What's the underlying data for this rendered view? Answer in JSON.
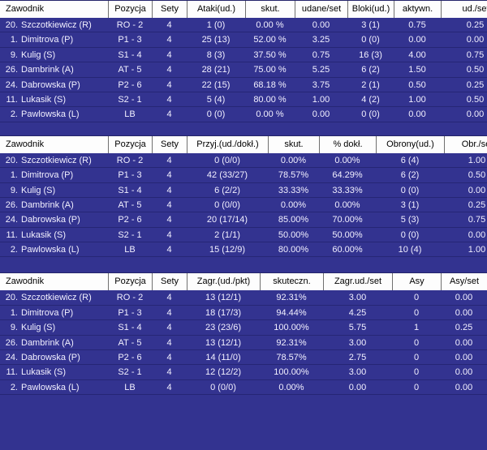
{
  "colors": {
    "background": "#333390",
    "header_bg": "#fdfdfd",
    "header_text": "#000000",
    "body_text": "#f2f0ff",
    "header_separator": "#707070"
  },
  "tables": [
    {
      "name": "attack-block-stats",
      "headers": [
        "Zawodnik",
        "Pozycja",
        "Sety",
        "Ataki(ud.)",
        "skut.",
        "udane/set",
        "Bloki(ud.)",
        "aktywn.",
        "ud./set"
      ],
      "rows": [
        {
          "num": "20.",
          "name": "Szczotkiewicz (R)",
          "values": [
            "RO - 2",
            "4",
            "1 (0)",
            "0.00 %",
            "0.00",
            "3 (1)",
            "0.75",
            "0.25"
          ]
        },
        {
          "num": "1.",
          "name": "Dimitrova (P)",
          "values": [
            "P1 - 3",
            "4",
            "25 (13)",
            "52.00 %",
            "3.25",
            "0 (0)",
            "0.00",
            "0.00"
          ]
        },
        {
          "num": "9.",
          "name": "Kulig (S)",
          "values": [
            "S1 - 4",
            "4",
            "8 (3)",
            "37.50 %",
            "0.75",
            "16 (3)",
            "4.00",
            "0.75"
          ]
        },
        {
          "num": "26.",
          "name": "Dambrink (A)",
          "values": [
            "AT - 5",
            "4",
            "28 (21)",
            "75.00 %",
            "5.25",
            "6 (2)",
            "1.50",
            "0.50"
          ]
        },
        {
          "num": "24.",
          "name": "Dabrowska (P)",
          "values": [
            "P2 - 6",
            "4",
            "22 (15)",
            "68.18 %",
            "3.75",
            "2 (1)",
            "0.50",
            "0.25"
          ]
        },
        {
          "num": "11.",
          "name": "Lukasik (S)",
          "values": [
            "S2 - 1",
            "4",
            "5 (4)",
            "80.00 %",
            "1.00",
            "4 (2)",
            "1.00",
            "0.50"
          ]
        },
        {
          "num": "2.",
          "name": "Pawlowska (L)",
          "values": [
            "LB",
            "4",
            "0 (0)",
            "0.00 %",
            "0.00",
            "0 (0)",
            "0.00",
            "0.00"
          ]
        }
      ]
    },
    {
      "name": "reception-defense-stats",
      "headers": [
        "Zawodnik",
        "Pozycja",
        "Sety",
        "Przyj.(ud./dokł.)",
        "skut.",
        "% dokł.",
        "Obrony(ud.)",
        "Obr./set"
      ],
      "rows": [
        {
          "num": "20.",
          "name": "Szczotkiewicz (R)",
          "values": [
            "RO - 2",
            "4",
            "0 (0/0)",
            "0.00%",
            "0.00%",
            "6 (4)",
            "1.00"
          ]
        },
        {
          "num": "1.",
          "name": "Dimitrova (P)",
          "values": [
            "P1 - 3",
            "4",
            "42 (33/27)",
            "78.57%",
            "64.29%",
            "6 (2)",
            "0.50"
          ]
        },
        {
          "num": "9.",
          "name": "Kulig (S)",
          "values": [
            "S1 - 4",
            "4",
            "6 (2/2)",
            "33.33%",
            "33.33%",
            "0 (0)",
            "0.00"
          ]
        },
        {
          "num": "26.",
          "name": "Dambrink (A)",
          "values": [
            "AT - 5",
            "4",
            "0 (0/0)",
            "0.00%",
            "0.00%",
            "3 (1)",
            "0.25"
          ]
        },
        {
          "num": "24.",
          "name": "Dabrowska (P)",
          "values": [
            "P2 - 6",
            "4",
            "20 (17/14)",
            "85.00%",
            "70.00%",
            "5 (3)",
            "0.75"
          ]
        },
        {
          "num": "11.",
          "name": "Lukasik (S)",
          "values": [
            "S2 - 1",
            "4",
            "2 (1/1)",
            "50.00%",
            "50.00%",
            "0 (0)",
            "0.00"
          ]
        },
        {
          "num": "2.",
          "name": "Pawlowska (L)",
          "values": [
            "LB",
            "4",
            "15 (12/9)",
            "80.00%",
            "60.00%",
            "10 (4)",
            "1.00"
          ]
        }
      ]
    },
    {
      "name": "serve-ace-stats",
      "headers": [
        "Zawodnik",
        "Pozycja",
        "Sety",
        "Zagr.(ud./pkt)",
        "skuteczn.",
        "Zagr.ud./set",
        "Asy",
        "Asy/set"
      ],
      "rows": [
        {
          "num": "20.",
          "name": "Szczotkiewicz (R)",
          "values": [
            "RO - 2",
            "4",
            "13 (12/1)",
            "92.31%",
            "3.00",
            "0",
            "0.00"
          ]
        },
        {
          "num": "1.",
          "name": "Dimitrova (P)",
          "values": [
            "P1 - 3",
            "4",
            "18 (17/3)",
            "94.44%",
            "4.25",
            "0",
            "0.00"
          ]
        },
        {
          "num": "9.",
          "name": "Kulig (S)",
          "values": [
            "S1 - 4",
            "4",
            "23 (23/6)",
            "100.00%",
            "5.75",
            "1",
            "0.25"
          ]
        },
        {
          "num": "26.",
          "name": "Dambrink (A)",
          "values": [
            "AT - 5",
            "4",
            "13 (12/1)",
            "92.31%",
            "3.00",
            "0",
            "0.00"
          ]
        },
        {
          "num": "24.",
          "name": "Dabrowska (P)",
          "values": [
            "P2 - 6",
            "4",
            "14 (11/0)",
            "78.57%",
            "2.75",
            "0",
            "0.00"
          ]
        },
        {
          "num": "11.",
          "name": "Lukasik (S)",
          "values": [
            "S2 - 1",
            "4",
            "12 (12/2)",
            "100.00%",
            "3.00",
            "0",
            "0.00"
          ]
        },
        {
          "num": "2.",
          "name": "Pawlowska (L)",
          "values": [
            "LB",
            "4",
            "0 (0/0)",
            "0.00%",
            "0.00",
            "0",
            "0.00"
          ]
        }
      ]
    }
  ]
}
